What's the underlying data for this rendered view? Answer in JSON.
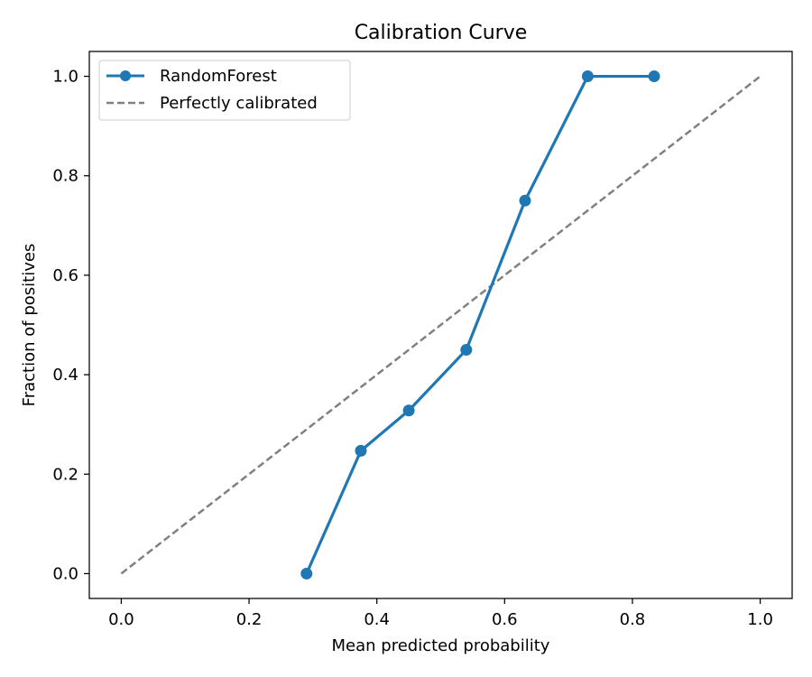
{
  "chart_data": {
    "type": "line",
    "title": "Calibration Curve",
    "xlabel": "Mean predicted probability",
    "ylabel": "Fraction of positives",
    "xlim": [
      -0.05,
      1.05
    ],
    "ylim": [
      -0.05,
      1.05
    ],
    "xticks": [
      0.0,
      0.2,
      0.4,
      0.6,
      0.8,
      1.0
    ],
    "yticks": [
      0.0,
      0.2,
      0.4,
      0.6,
      0.8,
      1.0
    ],
    "xtick_labels": [
      "0.0",
      "0.2",
      "0.4",
      "0.6",
      "0.8",
      "1.0"
    ],
    "ytick_labels": [
      "0.0",
      "0.2",
      "0.4",
      "0.6",
      "0.8",
      "1.0"
    ],
    "grid": false,
    "legend_position": "upper-left",
    "series": [
      {
        "name": "RandomForest",
        "style": "solid-with-markers",
        "color": "#1f77b4",
        "x": [
          0.29,
          0.375,
          0.45,
          0.54,
          0.632,
          0.73,
          0.834
        ],
        "y": [
          0.0,
          0.247,
          0.328,
          0.45,
          0.75,
          1.0,
          1.0
        ]
      },
      {
        "name": "Perfectly calibrated",
        "style": "dashed",
        "color": "#808080",
        "x": [
          0.0,
          1.0
        ],
        "y": [
          0.0,
          1.0
        ]
      }
    ]
  }
}
